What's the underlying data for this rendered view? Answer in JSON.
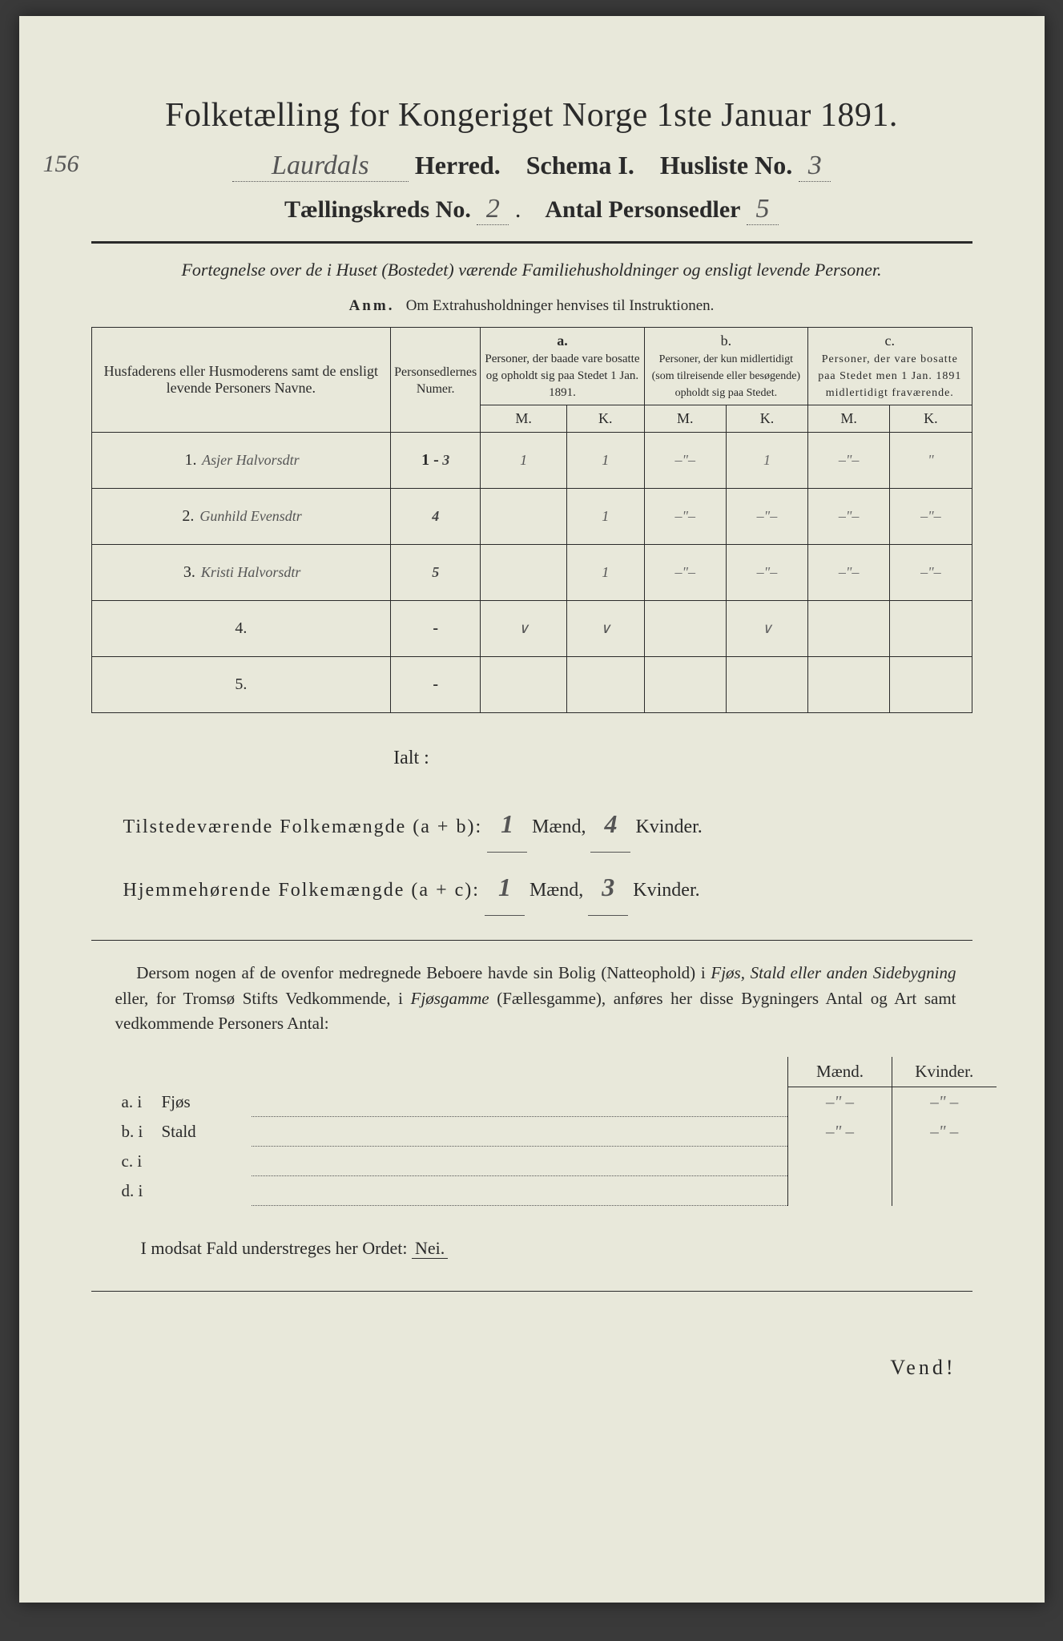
{
  "header": {
    "title": "Folketælling for Kongeriget Norge 1ste Januar 1891.",
    "margin_num": "156",
    "herred_hw": "Laurdals",
    "herred_label": "Herred.",
    "schema_label": "Schema I.",
    "husliste_label": "Husliste No.",
    "husliste_no": "3",
    "kreds_label": "Tællingskreds No.",
    "kreds_no": "2",
    "antal_label": "Antal Personsedler",
    "antal_no": "5"
  },
  "subtitle": "Fortegnelse over de i Huset (Bostedet) værende Familiehusholdninger og ensligt levende Personer.",
  "anm_label": "Anm.",
  "anm_text": "Om Extrahusholdninger henvises til Instruktionen.",
  "table": {
    "col_names_header": "Husfaderens eller Husmoderens samt de ensligt levende Personers Navne.",
    "col_num_header": "Personsedlernes Numer.",
    "col_a_label": "a.",
    "col_a_text": "Personer, der baade vare bosatte og opholdt sig paa Stedet 1 Jan. 1891.",
    "col_b_label": "b.",
    "col_b_text": "Personer, der kun midlertidigt (som tilreisende eller besøgende) opholdt sig paa Stedet.",
    "col_c_label": "c.",
    "col_c_text": "Personer, der vare bosatte paa Stedet men 1 Jan. 1891 midlertidigt fraværende.",
    "m": "M.",
    "k": "K.",
    "rows": [
      {
        "idx": "1.",
        "name": "Asjer Halvorsdtr",
        "num_pre": "1 -",
        "num_hw": "3",
        "aM": "1",
        "aK": "1",
        "bM": "–\"–",
        "bK": "1",
        "cM": "–\"–",
        "cK": "\""
      },
      {
        "idx": "2.",
        "name": "Gunhild Evensdtr",
        "num_pre": "",
        "num_hw": "4",
        "aM": "",
        "aK": "1",
        "bM": "–\"–",
        "bK": "–\"–",
        "cM": "–\"–",
        "cK": "–\"–"
      },
      {
        "idx": "3.",
        "name": "Kristi Halvorsdtr",
        "num_pre": "",
        "num_hw": "5",
        "aM": "",
        "aK": "1",
        "bM": "–\"–",
        "bK": "–\"–",
        "cM": "–\"–",
        "cK": "–\"–"
      },
      {
        "idx": "4.",
        "name": "",
        "num_pre": "-",
        "num_hw": "",
        "aM": "∨",
        "aK": "∨",
        "bM": "",
        "bK": "∨",
        "cM": "",
        "cK": ""
      },
      {
        "idx": "5.",
        "name": "",
        "num_pre": "-",
        "num_hw": "",
        "aM": "",
        "aK": "",
        "bM": "",
        "bK": "",
        "cM": "",
        "cK": ""
      }
    ]
  },
  "totals": {
    "ialt": "Ialt :",
    "line1_label": "Tilstedeværende Folkemængde (a + b):",
    "line1_m": "1",
    "maend": "Mænd,",
    "line1_k": "4",
    "kvinder": "Kvinder.",
    "line2_label": "Hjemmehørende Folkemængde (a + c):",
    "line2_m": "1",
    "line2_k": "3"
  },
  "para": {
    "text1": "Dersom nogen af de ovenfor medregnede Beboere havde sin Bolig (Natteophold) i ",
    "em1": "Fjøs, Stald eller anden Sidebygning",
    "text2": " eller, for Tromsø Stifts Vedkommende, i ",
    "em2": "Fjøsgamme",
    "text3": " (Fællesgamme), anføres her disse Bygningers Antal og Art samt vedkommende Personers Antal:"
  },
  "bldg": {
    "maend": "Mænd.",
    "kvinder": "Kvinder.",
    "rows": [
      {
        "label": "a.  i",
        "name": "Fjøs",
        "m": "–\" –",
        "k": "–\" –"
      },
      {
        "label": "b.  i",
        "name": "Stald",
        "m": "–\" –",
        "k": "–\" –"
      },
      {
        "label": "c.  i",
        "name": "",
        "m": "",
        "k": ""
      },
      {
        "label": "d.  i",
        "name": "",
        "m": "",
        "k": ""
      }
    ]
  },
  "modsat": {
    "text": "I modsat Fald understreges her Ordet:",
    "nei": "Nei."
  },
  "vend": "Vend!"
}
